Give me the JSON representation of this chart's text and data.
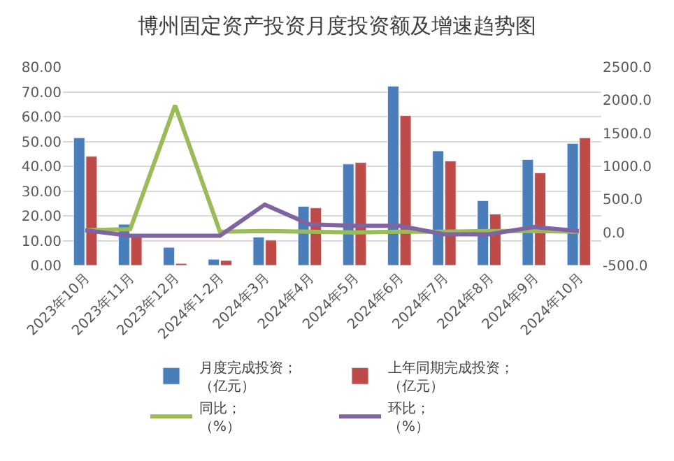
{
  "chart_data": {
    "type": "bar",
    "title": "博州固定资产投资月度投资额及增速趋势图",
    "categories": [
      "2023年10月",
      "2023年11月",
      "2023年12月",
      "2024年1-2月",
      "2024年3月",
      "2024年4月",
      "2024年5月",
      "2024年6月",
      "2024年7月",
      "2024年8月",
      "2024年9月",
      "2024年10月"
    ],
    "series": [
      {
        "name": "月度完成投资；（亿元）",
        "color": "#4a7ebb",
        "values": [
          51.5,
          16.6,
          7.3,
          2.5,
          11.4,
          23.8,
          40.9,
          72.3,
          46.2,
          26.1,
          42.7,
          49.2
        ]
      },
      {
        "name": "上年同期完成投资；（亿元）",
        "color": "#be4b48",
        "values": [
          44.0,
          11.5,
          0.8,
          2.0,
          10.2,
          23.2,
          41.5,
          60.4,
          42.1,
          20.7,
          37.3,
          51.5
        ]
      },
      {
        "name": "同比；（%）",
        "type": "line",
        "axis": "y2",
        "color": "#9bbb59",
        "values": [
          30,
          50,
          1920,
          10,
          20,
          10,
          0,
          10,
          10,
          20,
          20,
          10
        ]
      },
      {
        "name": "环比；（%）",
        "type": "line",
        "axis": "y2",
        "color": "#8064a2",
        "values": [
          30,
          -50,
          -50,
          -50,
          420,
          120,
          100,
          100,
          -30,
          -30,
          80,
          20
        ]
      }
    ],
    "ylim": [
      0,
      80
    ],
    "yticks": [
      {
        "value": 0,
        "label": "0.00"
      },
      {
        "value": 10,
        "label": "10.00"
      },
      {
        "value": 20,
        "label": "20.00"
      },
      {
        "value": 30,
        "label": "30.00"
      },
      {
        "value": 40,
        "label": "40.00"
      },
      {
        "value": 50,
        "label": "50.00"
      },
      {
        "value": 60,
        "label": "60.00"
      },
      {
        "value": 70,
        "label": "70.00"
      },
      {
        "value": 80,
        "label": "80.00"
      }
    ],
    "y2lim": [
      -500,
      2500
    ],
    "y2ticks": [
      {
        "value": -500,
        "label": "-500.0"
      },
      {
        "value": 0,
        "label": "0.0"
      },
      {
        "value": 500,
        "label": "500.0"
      },
      {
        "value": 1000,
        "label": "1000.0"
      },
      {
        "value": 1500,
        "label": "1500.0"
      },
      {
        "value": 2000,
        "label": "2000.0"
      },
      {
        "value": 2500,
        "label": "2500.0"
      }
    ],
    "grid": "y",
    "legend": "bottom",
    "marker": "none",
    "line_style": "solid"
  }
}
